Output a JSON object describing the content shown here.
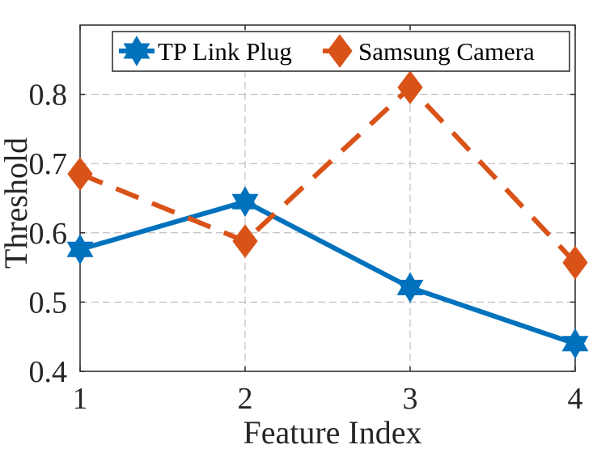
{
  "chart_data": {
    "type": "line",
    "title": "",
    "xlabel": "Feature Index",
    "ylabel": "Threshold",
    "x": [
      1,
      2,
      3,
      4
    ],
    "xlim": [
      1,
      4
    ],
    "ylim": [
      0.4,
      0.9
    ],
    "xticks": [
      "1",
      "2",
      "3",
      "4"
    ],
    "yticks": [
      "0.4",
      "0.5",
      "0.6",
      "0.7",
      "0.8"
    ],
    "grid": true,
    "legend_position": "top-right",
    "series": [
      {
        "name": "TP Link Plug",
        "values": [
          0.576,
          0.645,
          0.521,
          0.44
        ],
        "color": "#0072BD",
        "marker": "hexagram",
        "linestyle": "solid"
      },
      {
        "name": "Samsung Camera",
        "values": [
          0.685,
          0.588,
          0.81,
          0.557
        ],
        "color": "#D95319",
        "marker": "diamond",
        "linestyle": "dashed"
      }
    ]
  }
}
